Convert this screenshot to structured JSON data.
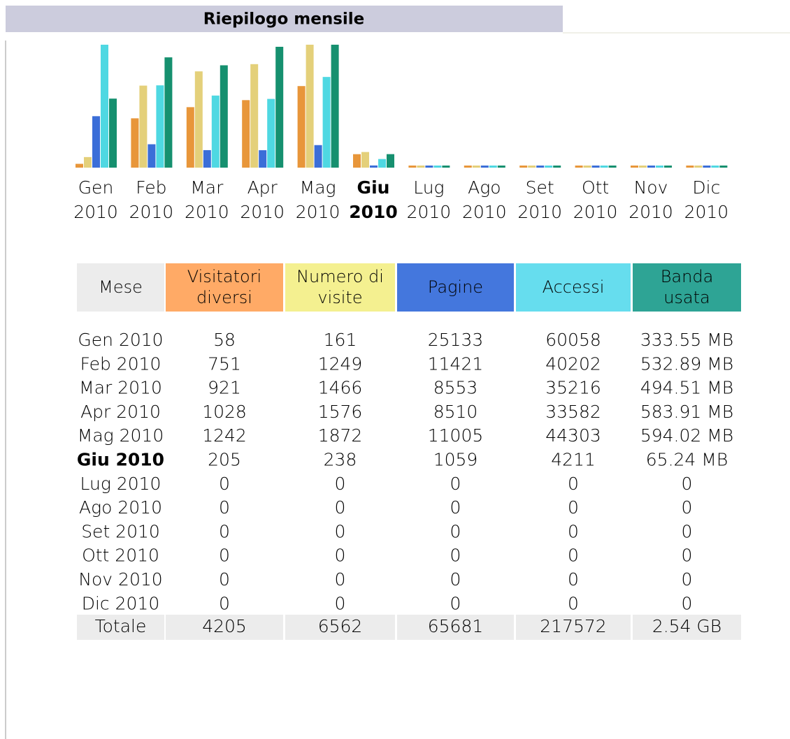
{
  "header": {
    "title": "Riepilogo mensile"
  },
  "chart": {
    "labels": [
      [
        "Gen",
        "2010"
      ],
      [
        "Feb",
        "2010"
      ],
      [
        "Mar",
        "2010"
      ],
      [
        "Apr",
        "2010"
      ],
      [
        "Mag",
        "2010"
      ],
      [
        "Giu",
        "2010"
      ],
      [
        "Lug",
        "2010"
      ],
      [
        "Ago",
        "2010"
      ],
      [
        "Set",
        "2010"
      ],
      [
        "Ott",
        "2010"
      ],
      [
        "Nov",
        "2010"
      ],
      [
        "Dic",
        "2010"
      ]
    ]
  },
  "table": {
    "columns": [
      [
        "Mese"
      ],
      [
        "Visitatori",
        "diversi"
      ],
      [
        "Numero di",
        "visite"
      ],
      [
        "Pagine"
      ],
      [
        "Accessi"
      ],
      [
        "Banda",
        "usata"
      ]
    ],
    "colors": [
      "#ececec",
      "#ffaa66",
      "#f4f090",
      "#4477dd",
      "#66ddee",
      "#2ea495"
    ],
    "bar_colors": [
      "#e8963a",
      "#e4d07a",
      "#3b6ed8",
      "#4fd8e2",
      "#16906f"
    ],
    "rows": [
      {
        "month": "Gen 2010",
        "visitors": 58,
        "visits": 161,
        "pages": 25133,
        "hits": 60058,
        "bandwidth": 333.55,
        "bandwidth_label": "333.55 MB"
      },
      {
        "month": "Feb 2010",
        "visitors": 751,
        "visits": 1249,
        "pages": 11421,
        "hits": 40202,
        "bandwidth": 532.89,
        "bandwidth_label": "532.89 MB"
      },
      {
        "month": "Mar 2010",
        "visitors": 921,
        "visits": 1466,
        "pages": 8553,
        "hits": 35216,
        "bandwidth": 494.51,
        "bandwidth_label": "494.51 MB"
      },
      {
        "month": "Apr 2010",
        "visitors": 1028,
        "visits": 1576,
        "pages": 8510,
        "hits": 33582,
        "bandwidth": 583.91,
        "bandwidth_label": "583.91 MB"
      },
      {
        "month": "Mag 2010",
        "visitors": 1242,
        "visits": 1872,
        "pages": 11005,
        "hits": 44303,
        "bandwidth": 594.02,
        "bandwidth_label": "594.02 MB"
      },
      {
        "month": "Giu 2010",
        "visitors": 205,
        "visits": 238,
        "pages": 1059,
        "hits": 4211,
        "bandwidth": 65.24,
        "bandwidth_label": "65.24 MB",
        "highlight": true
      },
      {
        "month": "Lug 2010",
        "visitors": 0,
        "visits": 0,
        "pages": 0,
        "hits": 0,
        "bandwidth": 0
      },
      {
        "month": "Ago 2010",
        "visitors": 0,
        "visits": 0,
        "pages": 0,
        "hits": 0,
        "bandwidth": 0
      },
      {
        "month": "Set 2010",
        "visitors": 0,
        "visits": 0,
        "pages": 0,
        "hits": 0,
        "bandwidth": 0
      },
      {
        "month": "Ott 2010",
        "visitors": 0,
        "visits": 0,
        "pages": 0,
        "hits": 0,
        "bandwidth": 0
      },
      {
        "month": "Nov 2010",
        "visitors": 0,
        "visits": 0,
        "pages": 0,
        "hits": 0,
        "bandwidth": 0
      },
      {
        "month": "Dic 2010",
        "visitors": 0,
        "visits": 0,
        "pages": 0,
        "hits": 0,
        "bandwidth": 0
      }
    ],
    "total": {
      "month": "Totale",
      "visitors": 4205,
      "visits": 6562,
      "pages": 65681,
      "hits": 217572,
      "bandwidth": 2.54,
      "bandwidth_label": "2.54 GB"
    }
  }
}
